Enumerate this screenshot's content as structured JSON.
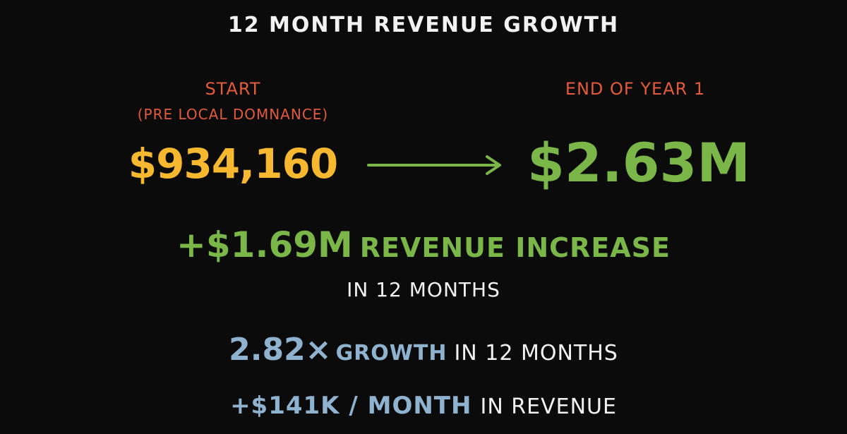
{
  "title": "12 MONTH REVENUE GROWTH",
  "start": {
    "label": "START",
    "sublabel": "(PRE LOCAL DOMNANCE)",
    "value": "$934,160"
  },
  "end": {
    "label": "END OF YEAR 1",
    "value": "$2.63M"
  },
  "increase": {
    "value": "+$1.69M",
    "text": "REVENUE INCREASE",
    "period": "IN 12 MONTHS"
  },
  "growth": {
    "multiplier": "2.82×",
    "word": "GROWTH",
    "text": "IN 12 MONTHS"
  },
  "monthly": {
    "value": "+$141K / MONTH",
    "text": "IN REVENUE"
  },
  "icons": {
    "arrow": "right-arrow-icon"
  },
  "colors": {
    "background": "#0b0b0b",
    "label_red": "#e35a3c",
    "start_yellow": "#f5b82e",
    "green": "#7ab648",
    "blue": "#8fb2cf",
    "white": "#f2f2f2"
  }
}
